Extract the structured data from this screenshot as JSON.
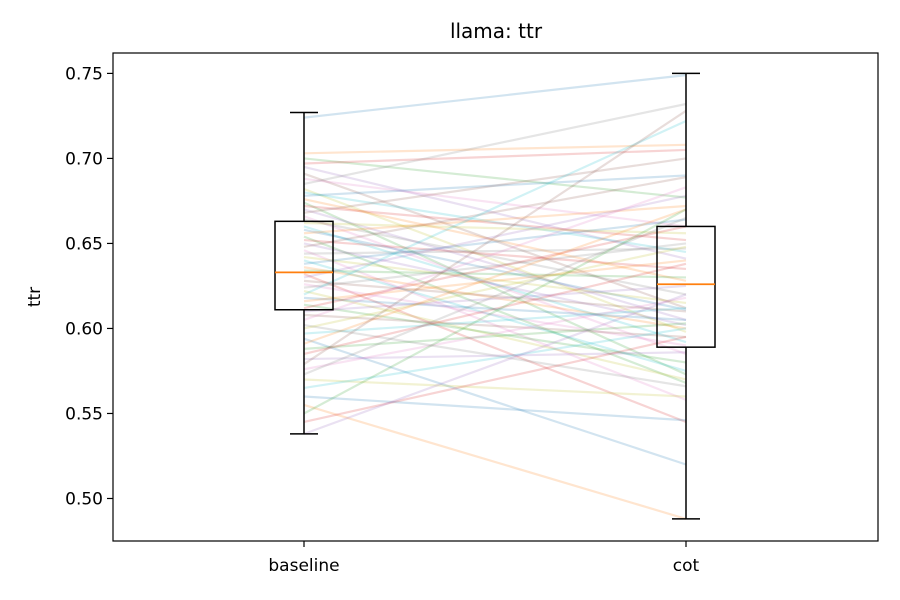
{
  "chart_data": {
    "type": "box",
    "title": "llama: ttr",
    "xlabel": "",
    "ylabel": "ttr",
    "categories": [
      "baseline",
      "cot"
    ],
    "ylim": [
      0.475,
      0.762
    ],
    "yticks": [
      "0.50",
      "0.55",
      "0.60",
      "0.65",
      "0.70",
      "0.75"
    ],
    "boxes": [
      {
        "category": "baseline",
        "whisker_low": 0.538,
        "q1": 0.611,
        "median": 0.633,
        "q3": 0.663,
        "whisker_high": 0.727
      },
      {
        "category": "cot",
        "whisker_low": 0.488,
        "q1": 0.589,
        "median": 0.626,
        "q3": 0.66,
        "whisker_high": 0.75
      }
    ],
    "paired_lines": [
      [
        0.724,
        0.749
      ],
      [
        0.703,
        0.708
      ],
      [
        0.7,
        0.677
      ],
      [
        0.697,
        0.705
      ],
      [
        0.695,
        0.641
      ],
      [
        0.691,
        0.612
      ],
      [
        0.688,
        0.66
      ],
      [
        0.685,
        0.732
      ],
      [
        0.682,
        0.598
      ],
      [
        0.68,
        0.645
      ],
      [
        0.678,
        0.69
      ],
      [
        0.676,
        0.628
      ],
      [
        0.674,
        0.573
      ],
      [
        0.672,
        0.652
      ],
      [
        0.67,
        0.605
      ],
      [
        0.668,
        0.7
      ],
      [
        0.666,
        0.585
      ],
      [
        0.664,
        0.62
      ],
      [
        0.662,
        0.656
      ],
      [
        0.66,
        0.592
      ],
      [
        0.658,
        0.611
      ],
      [
        0.656,
        0.672
      ],
      [
        0.654,
        0.568
      ],
      [
        0.652,
        0.635
      ],
      [
        0.65,
        0.602
      ],
      [
        0.648,
        0.689
      ],
      [
        0.646,
        0.558
      ],
      [
        0.644,
        0.647
      ],
      [
        0.642,
        0.615
      ],
      [
        0.64,
        0.575
      ],
      [
        0.638,
        0.664
      ],
      [
        0.636,
        0.6
      ],
      [
        0.634,
        0.63
      ],
      [
        0.632,
        0.545
      ],
      [
        0.63,
        0.678
      ],
      [
        0.628,
        0.61
      ],
      [
        0.626,
        0.59
      ],
      [
        0.624,
        0.65
      ],
      [
        0.622,
        0.57
      ],
      [
        0.62,
        0.722
      ],
      [
        0.618,
        0.605
      ],
      [
        0.616,
        0.64
      ],
      [
        0.614,
        0.58
      ],
      [
        0.612,
        0.66
      ],
      [
        0.61,
        0.625
      ],
      [
        0.608,
        0.595
      ],
      [
        0.605,
        0.683
      ],
      [
        0.602,
        0.566
      ],
      [
        0.6,
        0.648
      ],
      [
        0.597,
        0.612
      ],
      [
        0.594,
        0.52
      ],
      [
        0.591,
        0.67
      ],
      [
        0.588,
        0.603
      ],
      [
        0.585,
        0.638
      ],
      [
        0.582,
        0.586
      ],
      [
        0.579,
        0.728
      ],
      [
        0.576,
        0.618
      ],
      [
        0.573,
        0.665
      ],
      [
        0.57,
        0.56
      ],
      [
        0.565,
        0.6
      ],
      [
        0.56,
        0.546
      ],
      [
        0.555,
        0.488
      ],
      [
        0.55,
        0.67
      ],
      [
        0.545,
        0.595
      ],
      [
        0.538,
        0.62
      ]
    ],
    "colors": {
      "box": "#000000",
      "median": "#ff7f0e",
      "palette": [
        "#1f77b4",
        "#ff7f0e",
        "#2ca02c",
        "#d62728",
        "#9467bd",
        "#8c564b",
        "#e377c2",
        "#7f7f7f",
        "#bcbd22",
        "#17becf"
      ]
    }
  }
}
